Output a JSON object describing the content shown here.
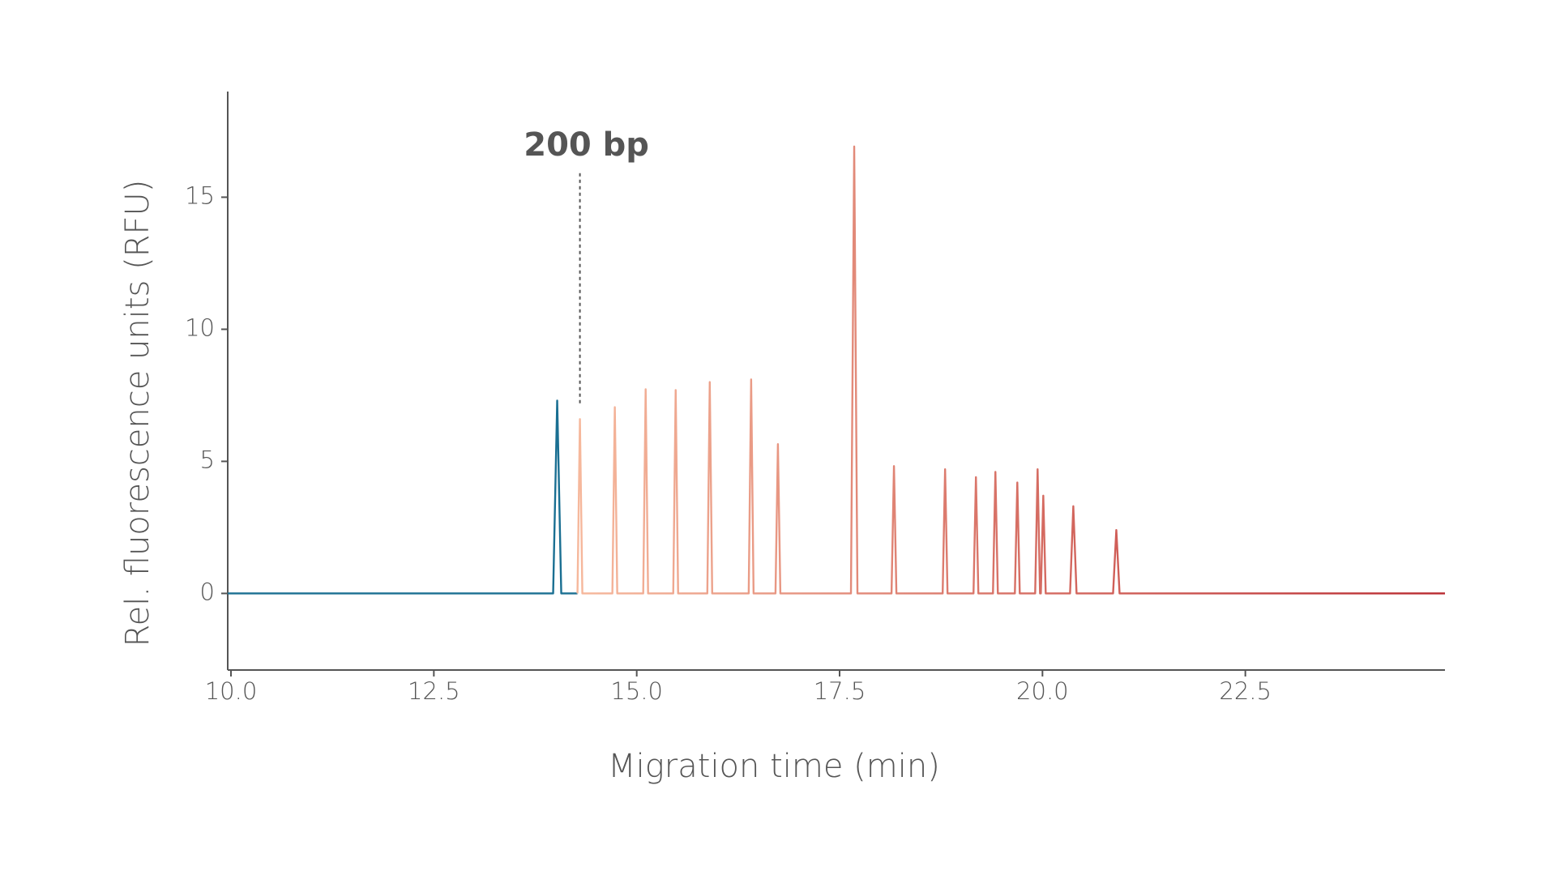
{
  "chart_data": {
    "type": "line",
    "xlabel": "Migration time (min)",
    "ylabel": "Rel. fluorescence units (RFU)",
    "xlim": [
      9.96,
      24.96
    ],
    "ylim": [
      -2.9,
      19
    ],
    "xticks": [
      {
        "value": 10,
        "label": "10.0"
      },
      12.5,
      {
        "value": 15,
        "label": "15.0"
      },
      17.5,
      {
        "value": 20,
        "label": "20.0"
      },
      22.5
    ],
    "yticks": [
      0,
      5,
      10,
      15
    ],
    "annotation": {
      "text": "200 bp",
      "x": 14.3,
      "y": [
        7.2,
        16
      ]
    },
    "series": [
      {
        "color": "#1a6f92",
        "x": [
          9.96,
          13.97,
          14.02,
          14.07,
          14.27
        ],
        "values": [
          0,
          0,
          7.3,
          0,
          0
        ]
      },
      {
        "colors": [
          "#f6b89c",
          "#b8282e"
        ],
        "x": [
          14.27,
          14.3,
          14.33,
          14.7,
          14.73,
          14.76,
          15.08,
          15.11,
          15.14,
          15.45,
          15.48,
          15.51,
          15.87,
          15.9,
          15.93,
          16.38,
          16.41,
          16.44,
          16.71,
          16.74,
          16.77,
          17.64,
          17.68,
          17.72,
          18.14,
          18.17,
          18.2,
          18.77,
          18.8,
          18.83,
          19.15,
          19.18,
          19.21,
          19.39,
          19.42,
          19.45,
          19.66,
          19.69,
          19.72,
          19.91,
          19.94,
          19.97,
          19.98,
          20.01,
          20.04,
          20.34,
          20.38,
          20.42,
          20.87,
          20.91,
          20.95,
          24.96
        ],
        "values": [
          0,
          6.6,
          0,
          0,
          7.05,
          0,
          0,
          7.73,
          0,
          0,
          7.7,
          0,
          0,
          8.0,
          0,
          0,
          8.1,
          0,
          0,
          5.65,
          0,
          0,
          16.92,
          0,
          0,
          4.82,
          0,
          0,
          4.7,
          0,
          0,
          4.4,
          0,
          0,
          4.6,
          0,
          0,
          4.2,
          0,
          0,
          4.7,
          0,
          0,
          3.7,
          0,
          0,
          3.3,
          0,
          0,
          2.4,
          0,
          0
        ]
      }
    ]
  }
}
